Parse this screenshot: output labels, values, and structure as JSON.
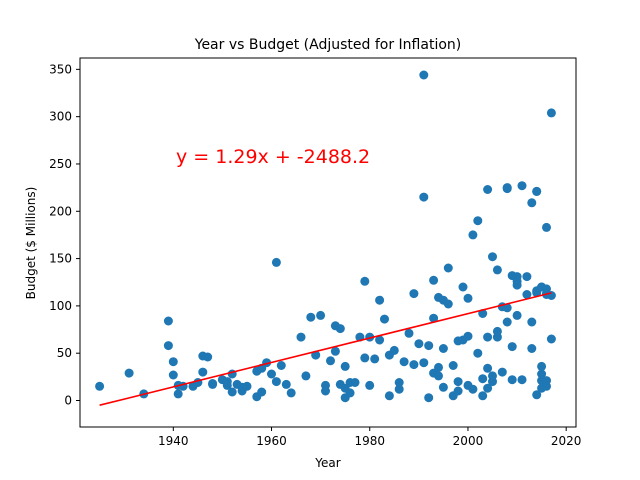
{
  "chart_data": {
    "type": "scatter",
    "title": "Year vs Budget (Adjusted for Inflation)",
    "xlabel": "Year",
    "ylabel": "Budget ($ Millions)",
    "xlim": [
      1921,
      2022
    ],
    "ylim": [
      -28,
      362
    ],
    "x_ticks": [
      1940,
      1960,
      1980,
      2000,
      2020
    ],
    "y_ticks": [
      0,
      50,
      100,
      150,
      200,
      250,
      300,
      350
    ],
    "grid": false,
    "point_color": "#1f77b4",
    "regression": {
      "slope": 1.29,
      "intercept": -2488.2,
      "x_range": [
        1925,
        2017
      ],
      "color": "#ff0000",
      "label": "y = 1.29x + -2488.2"
    },
    "x": [
      1925,
      1931,
      1934,
      1939,
      1939,
      1940,
      1940,
      1941,
      1941,
      1942,
      1944,
      1945,
      1946,
      1946,
      1947,
      1948,
      1948,
      1950,
      1951,
      1951,
      1952,
      1952,
      1953,
      1954,
      1954,
      1955,
      1957,
      1957,
      1958,
      1958,
      1959,
      1960,
      1961,
      1961,
      1962,
      1963,
      1964,
      1966,
      1967,
      1968,
      1969,
      1970,
      1971,
      1971,
      1972,
      1973,
      1973,
      1974,
      1974,
      1975,
      1975,
      1975,
      1976,
      1976,
      1977,
      1978,
      1979,
      1979,
      1980,
      1980,
      1981,
      1982,
      1982,
      1983,
      1984,
      1984,
      1985,
      1986,
      1986,
      1987,
      1988,
      1989,
      1989,
      1990,
      1991,
      1991,
      1991,
      1992,
      1992,
      1993,
      1993,
      1993,
      1994,
      1994,
      1994,
      1995,
      1995,
      1995,
      1996,
      1996,
      1997,
      1997,
      1998,
      1998,
      1998,
      1999,
      1999,
      2000,
      2000,
      2000,
      2001,
      2001,
      2002,
      2002,
      2003,
      2003,
      2003,
      2004,
      2004,
      2004,
      2004,
      2005,
      2005,
      2005,
      2006,
      2006,
      2006,
      2007,
      2007,
      2008,
      2008,
      2008,
      2008,
      2009,
      2009,
      2009,
      2010,
      2010,
      2010,
      2010,
      2011,
      2011,
      2012,
      2012,
      2013,
      2013,
      2013,
      2014,
      2014,
      2014,
      2014,
      2014,
      2015,
      2015,
      2015,
      2015,
      2015,
      2015,
      2016,
      2016,
      2016,
      2016,
      2016,
      2016,
      2017,
      2017,
      2017
    ],
    "y": [
      15,
      29,
      7,
      84,
      58,
      27,
      41,
      7,
      16,
      15,
      15,
      19,
      30,
      47,
      46,
      17,
      18,
      22,
      16,
      20,
      9,
      28,
      17,
      10,
      14,
      15,
      4,
      31,
      9,
      34,
      40,
      28,
      20,
      146,
      37,
      17,
      8,
      67,
      26,
      88,
      48,
      90,
      16,
      10,
      42,
      79,
      52,
      17,
      76,
      3,
      13,
      36,
      8,
      19,
      19,
      67,
      45,
      126,
      16,
      67,
      44,
      64,
      106,
      86,
      5,
      48,
      53,
      19,
      12,
      41,
      71,
      113,
      38,
      60,
      344,
      40,
      215,
      3,
      58,
      127,
      87,
      29,
      26,
      35,
      109,
      14,
      55,
      106,
      102,
      140,
      5,
      37,
      63,
      10,
      20,
      64,
      120,
      108,
      68,
      16,
      175,
      12,
      190,
      50,
      23,
      5,
      92,
      34,
      223,
      67,
      13,
      20,
      26,
      152,
      138,
      67,
      73,
      30,
      99,
      224,
      83,
      225,
      98,
      57,
      22,
      132,
      131,
      126,
      122,
      90,
      22,
      227,
      131,
      112,
      83,
      55,
      209,
      6,
      221,
      221,
      116,
      114,
      21,
      28,
      13,
      120,
      36,
      120,
      112,
      113,
      21,
      15,
      183,
      118,
      304,
      65,
      111
    ]
  }
}
